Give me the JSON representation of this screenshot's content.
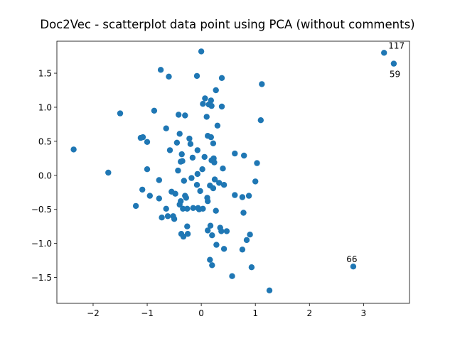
{
  "chart_data": {
    "type": "scatter",
    "title": "Doc2Vec - scatterplot data point using PCA (without comments)",
    "xlabel": "",
    "ylabel": "",
    "xlim": [
      -2.67,
      3.85
    ],
    "ylim": [
      -1.88,
      1.97
    ],
    "xticks": [
      -2,
      -1,
      0,
      1,
      2,
      3
    ],
    "yticks": [
      -1.5,
      -1.0,
      -0.5,
      0.0,
      0.5,
      1.0,
      1.5
    ],
    "xtick_labels": [
      "−2",
      "−1",
      "0",
      "1",
      "2",
      "3"
    ],
    "ytick_labels": [
      "−1.5",
      "−1.0",
      "−0.5",
      "0.0",
      "0.5",
      "1.0",
      "1.5"
    ],
    "grid": false,
    "point_color": "#1f77b4",
    "points": [
      [
        -2.36,
        0.38
      ],
      [
        -1.72,
        0.04
      ],
      [
        -1.5,
        0.91
      ],
      [
        -1.21,
        -0.45
      ],
      [
        -1.12,
        0.55
      ],
      [
        -1.08,
        0.56
      ],
      [
        -1.09,
        -0.21
      ],
      [
        -1.0,
        0.49
      ],
      [
        -1.0,
        0.09
      ],
      [
        -0.95,
        -0.3
      ],
      [
        -0.87,
        0.95
      ],
      [
        -0.78,
        -0.07
      ],
      [
        -0.78,
        -0.34
      ],
      [
        -0.75,
        1.55
      ],
      [
        -0.73,
        -0.62
      ],
      [
        -0.65,
        0.69
      ],
      [
        -0.65,
        -0.49
      ],
      [
        -0.62,
        -0.6
      ],
      [
        -0.6,
        1.45
      ],
      [
        -0.58,
        0.37
      ],
      [
        -0.55,
        -0.24
      ],
      [
        -0.52,
        -0.6
      ],
      [
        -0.5,
        -0.64
      ],
      [
        -0.48,
        -0.27
      ],
      [
        -0.45,
        0.48
      ],
      [
        -0.43,
        0.07
      ],
      [
        -0.42,
        0.89
      ],
      [
        -0.4,
        0.61
      ],
      [
        -0.4,
        -0.43
      ],
      [
        -0.38,
        0.2
      ],
      [
        -0.38,
        -0.38
      ],
      [
        -0.37,
        -0.86
      ],
      [
        -0.36,
        0.31
      ],
      [
        -0.35,
        0.21
      ],
      [
        -0.34,
        -0.49
      ],
      [
        -0.33,
        -0.9
      ],
      [
        -0.32,
        -0.08
      ],
      [
        -0.3,
        0.88
      ],
      [
        -0.3,
        -0.3
      ],
      [
        -0.28,
        -0.33
      ],
      [
        -0.26,
        -0.75
      ],
      [
        -0.26,
        -0.49
      ],
      [
        -0.25,
        -0.86
      ],
      [
        -0.22,
        0.54
      ],
      [
        -0.2,
        0.46
      ],
      [
        -0.18,
        -0.04
      ],
      [
        -0.16,
        0.26
      ],
      [
        -0.15,
        -0.48
      ],
      [
        -0.08,
        1.46
      ],
      [
        -0.08,
        -0.14
      ],
      [
        -0.07,
        0.37
      ],
      [
        -0.07,
        0.02
      ],
      [
        -0.06,
        -0.48
      ],
      [
        -0.04,
        -0.5
      ],
      [
        -0.02,
        -0.23
      ],
      [
        0.0,
        1.82
      ],
      [
        0.02,
        0.09
      ],
      [
        0.03,
        1.05
      ],
      [
        0.03,
        -0.49
      ],
      [
        0.06,
        0.27
      ],
      [
        0.07,
        1.13
      ],
      [
        0.1,
        0.86
      ],
      [
        0.11,
        -0.33
      ],
      [
        0.12,
        -0.38
      ],
      [
        0.12,
        -0.81
      ],
      [
        0.12,
        0.58
      ],
      [
        0.14,
        1.04
      ],
      [
        0.16,
        -0.15
      ],
      [
        0.16,
        -1.24
      ],
      [
        0.17,
        -0.74
      ],
      [
        0.18,
        1.1
      ],
      [
        0.18,
        0.56
      ],
      [
        0.19,
        1.02
      ],
      [
        0.19,
        0.22
      ],
      [
        0.2,
        -1.32
      ],
      [
        0.2,
        -0.88
      ],
      [
        0.22,
        -0.19
      ],
      [
        0.22,
        0.47
      ],
      [
        0.23,
        0.25
      ],
      [
        0.24,
        0.19
      ],
      [
        0.25,
        -0.06
      ],
      [
        0.27,
        1.25
      ],
      [
        0.27,
        -0.52
      ],
      [
        0.28,
        -1.02
      ],
      [
        0.3,
        0.73
      ],
      [
        0.33,
        -0.11
      ],
      [
        0.35,
        -0.77
      ],
      [
        0.37,
        -0.82
      ],
      [
        0.38,
        1.43
      ],
      [
        0.38,
        1.01
      ],
      [
        0.4,
        0.1
      ],
      [
        0.42,
        -0.14
      ],
      [
        0.42,
        -1.08
      ],
      [
        0.47,
        -0.82
      ],
      [
        0.57,
        -1.48
      ],
      [
        0.62,
        0.32
      ],
      [
        0.62,
        -0.29
      ],
      [
        0.76,
        -0.32
      ],
      [
        0.76,
        -1.09
      ],
      [
        0.78,
        -0.55
      ],
      [
        0.79,
        0.29
      ],
      [
        0.84,
        -0.95
      ],
      [
        0.88,
        -0.3
      ],
      [
        0.9,
        -0.87
      ],
      [
        0.93,
        -1.35
      ],
      [
        1.0,
        -0.09
      ],
      [
        1.03,
        0.18
      ],
      [
        1.1,
        0.81
      ],
      [
        1.12,
        1.34
      ],
      [
        1.26,
        -1.69
      ],
      [
        2.81,
        -1.34
      ],
      [
        3.38,
        1.8
      ],
      [
        3.56,
        1.64
      ]
    ],
    "annotations": [
      {
        "label": "117",
        "x": 3.38,
        "y": 1.8
      },
      {
        "label": "59",
        "x": 3.56,
        "y": 1.64
      },
      {
        "label": "66",
        "x": 2.81,
        "y": -1.34
      }
    ]
  }
}
